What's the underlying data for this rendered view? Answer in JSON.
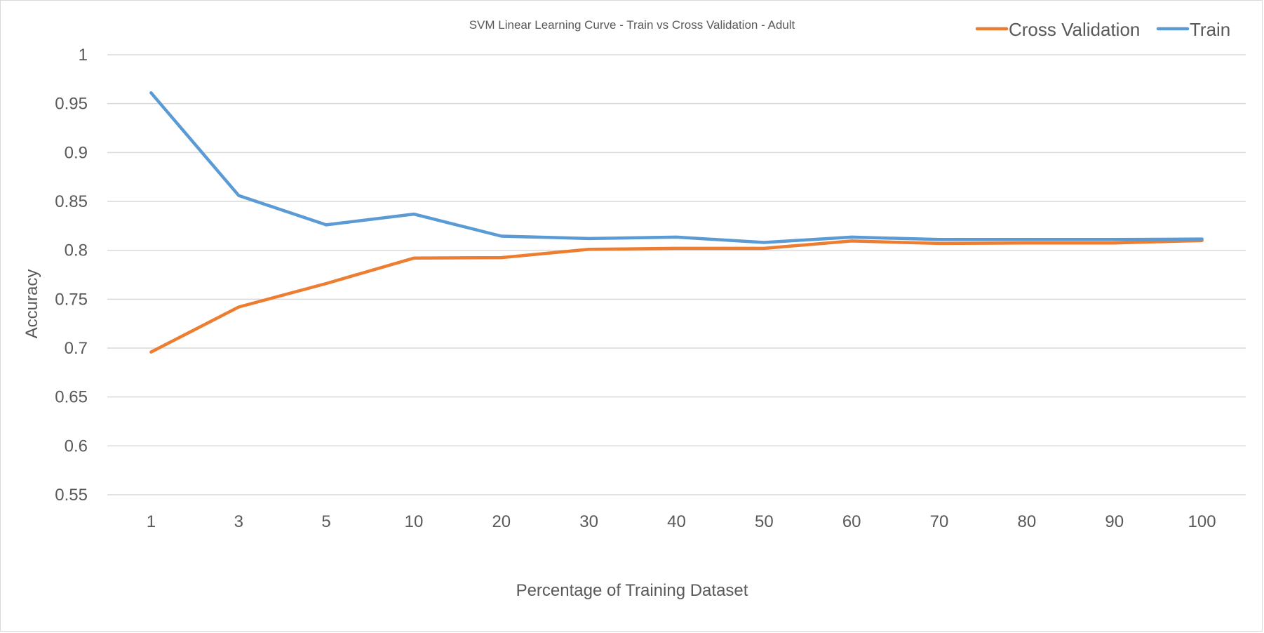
{
  "chart_data": {
    "type": "line",
    "title": "SVM Linear Learning Curve - Train vs Cross Validation - Adult",
    "xlabel": "Percentage of Training Dataset",
    "ylabel": "Accuracy",
    "categories": [
      "1",
      "3",
      "5",
      "10",
      "20",
      "30",
      "40",
      "50",
      "60",
      "70",
      "80",
      "90",
      "100"
    ],
    "ylim": [
      0.55,
      1
    ],
    "yticks": [
      0.55,
      0.6,
      0.65,
      0.7,
      0.75,
      0.8,
      0.85,
      0.9,
      0.95,
      1
    ],
    "ytick_labels": [
      "0.55",
      "0.6",
      "0.65",
      "0.7",
      "0.75",
      "0.8",
      "0.85",
      "0.9",
      "0.95",
      "1"
    ],
    "grid": true,
    "legend_position": "top-right",
    "series": [
      {
        "name": "Cross Validation",
        "color": "#ED7D31",
        "values": [
          0.696,
          0.742,
          0.766,
          0.792,
          0.7925,
          0.801,
          0.802,
          0.802,
          0.8095,
          0.807,
          0.8075,
          0.8075,
          0.81
        ]
      },
      {
        "name": "Train",
        "color": "#5B9BD5",
        "values": [
          0.961,
          0.856,
          0.826,
          0.837,
          0.8145,
          0.812,
          0.8135,
          0.808,
          0.8135,
          0.811,
          0.811,
          0.811,
          0.8115
        ]
      }
    ],
    "legend_order": [
      0,
      1
    ]
  }
}
